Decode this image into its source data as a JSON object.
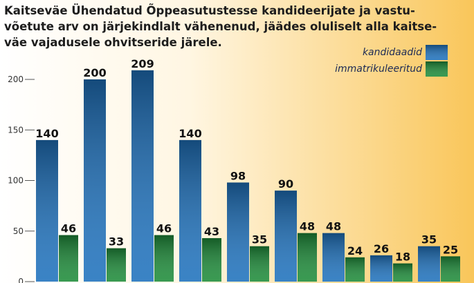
{
  "chart_data": {
    "type": "bar",
    "title": [
      "Kaitseväe Ühendatud Õppeasutustesse kandideerijate ja vastu-",
      "võetute arv on järjekindlalt vähenenud, jäädes oluliselt alla kaitse-",
      "väe vajadusele ohvitseride järele."
    ],
    "categories": [
      null,
      null,
      null,
      null,
      null,
      null,
      null,
      null,
      null
    ],
    "series": [
      {
        "name": "kandidaadid",
        "color": "#1f72bd",
        "values": [
          140,
          200,
          209,
          140,
          98,
          90,
          48,
          26,
          35
        ]
      },
      {
        "name": "immatrikuleeritud",
        "color": "#1e8c3a",
        "values": [
          46,
          33,
          46,
          43,
          35,
          48,
          24,
          18,
          25
        ]
      }
    ],
    "ylim": [
      0,
      225
    ],
    "yticks": [
      0,
      50,
      100,
      150,
      200
    ],
    "grid": false,
    "legend": "top-right"
  }
}
